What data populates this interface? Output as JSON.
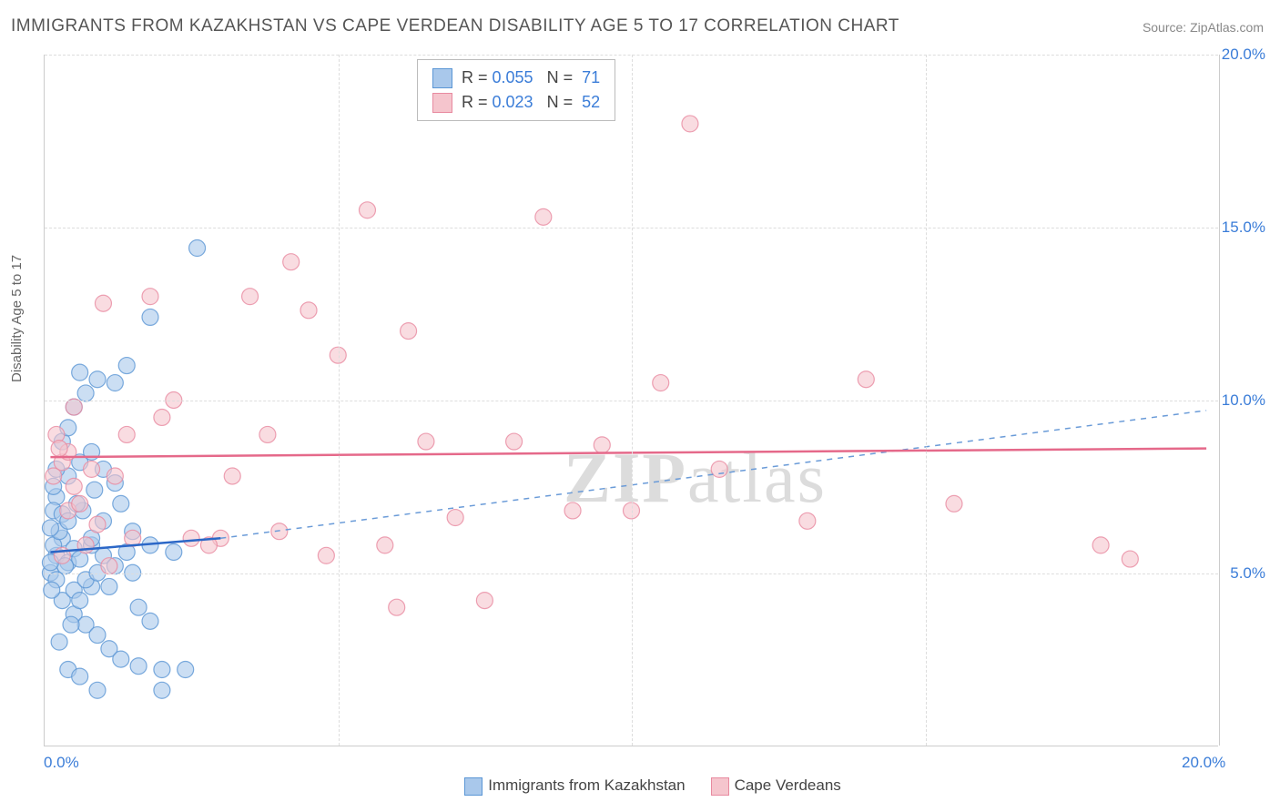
{
  "title": "IMMIGRANTS FROM KAZAKHSTAN VS CAPE VERDEAN DISABILITY AGE 5 TO 17 CORRELATION CHART",
  "source": "Source: ZipAtlas.com",
  "ylabel": "Disability Age 5 to 17",
  "watermark_a": "ZIP",
  "watermark_b": "atlas",
  "chart": {
    "type": "scatter",
    "xlim": [
      0,
      20
    ],
    "ylim": [
      0,
      20
    ],
    "x_ticks": [
      {
        "v": 0,
        "label": "0.0%"
      },
      {
        "v": 20,
        "label": "20.0%"
      }
    ],
    "y_ticks": [
      {
        "v": 5,
        "label": "5.0%"
      },
      {
        "v": 10,
        "label": "10.0%"
      },
      {
        "v": 15,
        "label": "15.0%"
      },
      {
        "v": 20,
        "label": "20.0%"
      }
    ],
    "grid_color": "#dddddd",
    "background_color": "#ffffff",
    "series": [
      {
        "name": "Immigrants from Kazakhstan",
        "fill": "#a9c8eb",
        "stroke": "#5b96d5",
        "opacity": 0.6,
        "marker_r": 9,
        "R": "0.055",
        "N": "71",
        "trend": {
          "x1": 0.1,
          "y1": 5.6,
          "x2": 3.0,
          "y2": 6.0,
          "dash": false,
          "color": "#2b67c7",
          "width": 2.5
        },
        "trend_ext": {
          "x1": 3.0,
          "y1": 6.0,
          "x2": 19.8,
          "y2": 9.7,
          "dash": true,
          "color": "#6a9bd8",
          "width": 1.5
        },
        "points": [
          [
            0.2,
            5.5
          ],
          [
            0.3,
            6.0
          ],
          [
            0.15,
            5.8
          ],
          [
            0.4,
            5.3
          ],
          [
            0.25,
            6.2
          ],
          [
            0.1,
            5.0
          ],
          [
            0.5,
            5.7
          ],
          [
            0.6,
            5.4
          ],
          [
            0.2,
            4.8
          ],
          [
            0.8,
            4.6
          ],
          [
            1.0,
            5.5
          ],
          [
            1.2,
            5.2
          ],
          [
            1.4,
            5.6
          ],
          [
            0.3,
            4.2
          ],
          [
            0.5,
            3.8
          ],
          [
            0.7,
            3.5
          ],
          [
            0.9,
            3.2
          ],
          [
            1.1,
            2.8
          ],
          [
            1.3,
            2.5
          ],
          [
            0.4,
            2.2
          ],
          [
            0.6,
            2.0
          ],
          [
            1.6,
            2.3
          ],
          [
            2.0,
            2.2
          ],
          [
            2.4,
            2.2
          ],
          [
            0.2,
            7.2
          ],
          [
            0.4,
            7.8
          ],
          [
            0.6,
            8.2
          ],
          [
            0.8,
            8.5
          ],
          [
            0.3,
            8.8
          ],
          [
            0.5,
            9.8
          ],
          [
            0.7,
            10.2
          ],
          [
            0.9,
            10.6
          ],
          [
            0.6,
            10.8
          ],
          [
            1.2,
            10.5
          ],
          [
            1.4,
            11.0
          ],
          [
            1.0,
            6.5
          ],
          [
            1.3,
            7.0
          ],
          [
            1.5,
            6.2
          ],
          [
            1.8,
            5.8
          ],
          [
            2.2,
            5.6
          ],
          [
            0.15,
            6.8
          ],
          [
            0.35,
            5.2
          ],
          [
            0.12,
            4.5
          ],
          [
            0.8,
            5.8
          ],
          [
            1.6,
            4.0
          ],
          [
            1.8,
            3.6
          ],
          [
            2.6,
            14.4
          ],
          [
            1.8,
            12.4
          ],
          [
            0.9,
            1.6
          ],
          [
            2.0,
            1.6
          ],
          [
            0.4,
            9.2
          ],
          [
            0.5,
            4.5
          ],
          [
            0.7,
            4.8
          ],
          [
            0.9,
            5.0
          ],
          [
            1.1,
            4.6
          ],
          [
            0.25,
            3.0
          ],
          [
            0.45,
            3.5
          ],
          [
            1.5,
            5.0
          ],
          [
            0.1,
            6.3
          ],
          [
            0.3,
            6.7
          ],
          [
            0.65,
            6.8
          ],
          [
            0.85,
            7.4
          ],
          [
            0.2,
            8.0
          ],
          [
            0.55,
            7.0
          ],
          [
            1.0,
            8.0
          ],
          [
            1.2,
            7.6
          ],
          [
            0.15,
            7.5
          ],
          [
            0.1,
            5.3
          ],
          [
            0.4,
            6.5
          ],
          [
            0.6,
            4.2
          ],
          [
            0.8,
            6.0
          ]
        ]
      },
      {
        "name": "Cape Verdeans",
        "fill": "#f5c5cd",
        "stroke": "#e88aa0",
        "opacity": 0.6,
        "marker_r": 9,
        "R": "0.023",
        "N": "52",
        "trend": {
          "x1": 0.1,
          "y1": 8.35,
          "x2": 19.8,
          "y2": 8.6,
          "dash": false,
          "color": "#e5698a",
          "width": 2.5
        },
        "points": [
          [
            0.3,
            8.2
          ],
          [
            0.5,
            7.5
          ],
          [
            0.8,
            8.0
          ],
          [
            1.5,
            6.0
          ],
          [
            2.0,
            9.5
          ],
          [
            2.5,
            6.0
          ],
          [
            3.0,
            6.0
          ],
          [
            3.5,
            13.0
          ],
          [
            4.2,
            14.0
          ],
          [
            4.5,
            12.6
          ],
          [
            5.0,
            11.3
          ],
          [
            5.5,
            15.5
          ],
          [
            5.8,
            5.8
          ],
          [
            6.0,
            4.0
          ],
          [
            6.5,
            8.8
          ],
          [
            7.0,
            6.6
          ],
          [
            7.5,
            4.2
          ],
          [
            8.0,
            8.8
          ],
          [
            8.5,
            15.3
          ],
          [
            9.0,
            6.8
          ],
          [
            9.5,
            8.7
          ],
          [
            10.0,
            6.8
          ],
          [
            10.5,
            10.5
          ],
          [
            11.0,
            18.0
          ],
          [
            11.5,
            8.0
          ],
          [
            13.0,
            6.5
          ],
          [
            14.0,
            10.6
          ],
          [
            15.5,
            7.0
          ],
          [
            18.0,
            5.8
          ],
          [
            18.5,
            5.4
          ],
          [
            1.0,
            12.8
          ],
          [
            0.4,
            6.8
          ],
          [
            0.6,
            7.0
          ],
          [
            0.4,
            8.5
          ],
          [
            0.2,
            9.0
          ],
          [
            1.2,
            7.8
          ],
          [
            2.8,
            5.8
          ],
          [
            3.2,
            7.8
          ],
          [
            4.0,
            6.2
          ],
          [
            4.8,
            5.5
          ],
          [
            1.8,
            13.0
          ],
          [
            2.2,
            10.0
          ],
          [
            3.8,
            9.0
          ],
          [
            0.3,
            5.5
          ],
          [
            0.7,
            5.8
          ],
          [
            1.4,
            9.0
          ],
          [
            0.5,
            9.8
          ],
          [
            0.9,
            6.4
          ],
          [
            1.1,
            5.2
          ],
          [
            6.2,
            12.0
          ],
          [
            0.15,
            7.8
          ],
          [
            0.25,
            8.6
          ]
        ]
      }
    ]
  },
  "legend_bottom": [
    {
      "label": "Immigrants from Kazakhstan",
      "fill": "#a9c8eb",
      "stroke": "#5b96d5"
    },
    {
      "label": "Cape Verdeans",
      "fill": "#f5c5cd",
      "stroke": "#e88aa0"
    }
  ]
}
